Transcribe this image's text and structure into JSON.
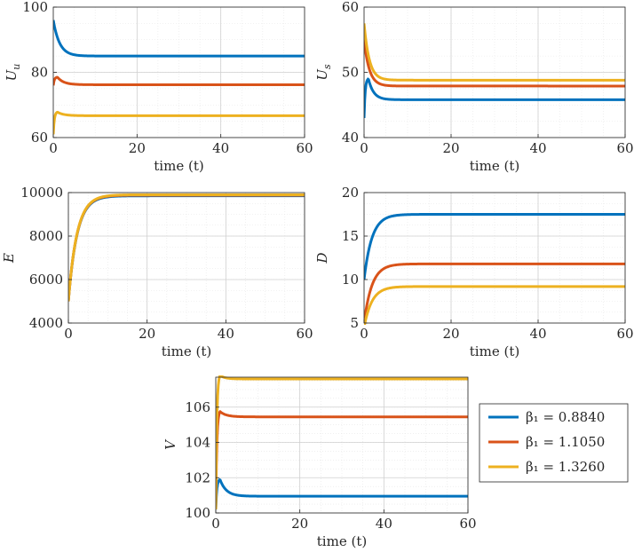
{
  "colors": {
    "series": [
      "#0072BD",
      "#D95319",
      "#EDB120"
    ],
    "grid": "#d9d9d9",
    "axis": "#262626"
  },
  "legend": {
    "entries": [
      "β₁ = 0.8840",
      "β₁ = 1.1050",
      "β₁ = 1.3260"
    ]
  },
  "chart_data": [
    {
      "id": "Uu",
      "type": "line",
      "ylabel": "U_u",
      "xlabel": "time (t)",
      "xlim": [
        0,
        60
      ],
      "ylim": [
        60,
        100
      ],
      "xticks": [
        0,
        20,
        40,
        60
      ],
      "yticks": [
        60,
        80,
        100
      ],
      "grid": true,
      "series": [
        {
          "y0": 96,
          "peak": null,
          "steady": 85,
          "tau": 1.5
        },
        {
          "y0": 76,
          "peak": 78.5,
          "steady": 76.2,
          "tau": 1.5
        },
        {
          "y0": 61,
          "peak": 67.8,
          "steady": 66.7,
          "tau": 1.5
        }
      ]
    },
    {
      "id": "Us",
      "type": "line",
      "ylabel": "U_s",
      "xlabel": "time (t)",
      "xlim": [
        0,
        60
      ],
      "ylim": [
        40,
        60
      ],
      "xticks": [
        0,
        20,
        40,
        60
      ],
      "yticks": [
        40,
        50,
        60
      ],
      "grid": true,
      "series": [
        {
          "y0": 43,
          "peak": 49,
          "steady": 45.8,
          "tau": 1.2
        },
        {
          "y0": 55,
          "peak": null,
          "steady": 47.9,
          "tau": 1.2
        },
        {
          "y0": 57.5,
          "peak": null,
          "steady": 48.8,
          "tau": 1.2
        }
      ]
    },
    {
      "id": "E",
      "type": "line",
      "ylabel": "E",
      "xlabel": "time (t)",
      "xlim": [
        0,
        60
      ],
      "ylim": [
        4000,
        10000
      ],
      "xticks": [
        0,
        20,
        40,
        60
      ],
      "yticks": [
        4000,
        6000,
        8000,
        10000
      ],
      "grid": true,
      "series": [
        {
          "y0": 5000,
          "peak": null,
          "steady": 9850,
          "tau": 2.2
        },
        {
          "y0": 5000,
          "peak": null,
          "steady": 9880,
          "tau": 2.2
        },
        {
          "y0": 5000,
          "peak": null,
          "steady": 9900,
          "tau": 2.2
        }
      ]
    },
    {
      "id": "D",
      "type": "line",
      "ylabel": "D",
      "xlabel": "time (t)",
      "xlim": [
        0,
        60
      ],
      "ylim": [
        5,
        20
      ],
      "xticks": [
        0,
        20,
        40,
        60
      ],
      "yticks": [
        5,
        10,
        15,
        20
      ],
      "grid": true,
      "series": [
        {
          "y0": 10,
          "peak": null,
          "steady": 17.5,
          "tau": 1.8
        },
        {
          "y0": 5,
          "peak": null,
          "steady": 11.8,
          "tau": 1.8
        },
        {
          "y0": 4.5,
          "peak": null,
          "steady": 9.2,
          "tau": 1.8
        }
      ]
    },
    {
      "id": "V",
      "type": "line",
      "ylabel": "V",
      "xlabel": "time (t)",
      "xlim": [
        0,
        60
      ],
      "ylim": [
        100,
        107.7
      ],
      "xticks": [
        0,
        20,
        40,
        60
      ],
      "yticks": [
        100,
        102,
        104,
        106
      ],
      "grid": true,
      "series": [
        {
          "y0": 100.2,
          "peak": 101.9,
          "steady": 100.95,
          "tau": 1.5
        },
        {
          "y0": 100.2,
          "peak": 105.75,
          "steady": 105.45,
          "tau": 1.5
        },
        {
          "y0": 100.2,
          "peak": 107.8,
          "steady": 107.6,
          "tau": 1.2
        }
      ]
    }
  ]
}
